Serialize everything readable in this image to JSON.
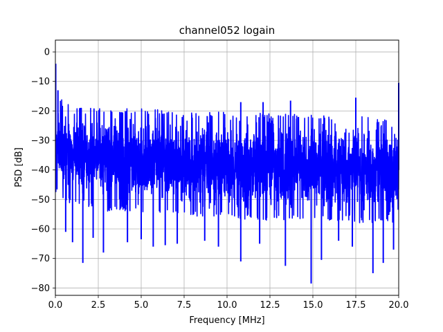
{
  "chart_data": {
    "type": "line",
    "title": "channel052 logain",
    "xlabel": "Frequency [MHz]",
    "ylabel": "PSD [dB]",
    "xlim": [
      0,
      20
    ],
    "ylim": [
      -82.5,
      4
    ],
    "xticks": [
      0,
      2.5,
      5,
      7.5,
      10,
      12.5,
      15,
      17.5,
      20
    ],
    "xtick_labels": [
      "0.0",
      "2.5",
      "5.0",
      "7.5",
      "10.0",
      "12.5",
      "15.0",
      "17.5",
      "20.0"
    ],
    "yticks": [
      0,
      -10,
      -20,
      -30,
      -40,
      -50,
      -60,
      -70,
      -80
    ],
    "ytick_labels": [
      "0",
      "−10",
      "−20",
      "−30",
      "−40",
      "−50",
      "−60",
      "−70",
      "−80"
    ],
    "grid": true,
    "series": [
      {
        "color": "#0000ff",
        "noise_floor": {
          "x": [
            0,
            0.5,
            1,
            2,
            3,
            4,
            5,
            6,
            7,
            8,
            9,
            10,
            11,
            12,
            13,
            14,
            15,
            16,
            17,
            18,
            19,
            20
          ],
          "y_max": [
            -14,
            -17,
            -18,
            -18,
            -18.5,
            -19,
            -19,
            -19.5,
            -19.5,
            -20,
            -20,
            -20.5,
            -20.5,
            -20.5,
            -21,
            -21,
            -21,
            -21.5,
            -21.5,
            -22,
            -22,
            -22
          ],
          "y_min": [
            -48,
            -50,
            -52,
            -53,
            -54,
            -54,
            -55,
            -55,
            -55,
            -56,
            -56,
            -56,
            -57,
            -57,
            -57,
            -57,
            -58,
            -58,
            -58,
            -58,
            -58,
            -58
          ]
        },
        "spikes_up": [
          {
            "x": 0.02,
            "y": -4
          },
          {
            "x": 0.15,
            "y": -13
          },
          {
            "x": 10.8,
            "y": -17
          },
          {
            "x": 12.1,
            "y": -17
          },
          {
            "x": 13.7,
            "y": -16.5
          },
          {
            "x": 17.5,
            "y": -15.5
          },
          {
            "x": 20.0,
            "y": -10.5
          }
        ],
        "spikes_down": [
          {
            "x": 0.6,
            "y": -61
          },
          {
            "x": 1.0,
            "y": -64.5
          },
          {
            "x": 1.6,
            "y": -71.5
          },
          {
            "x": 2.2,
            "y": -63
          },
          {
            "x": 2.8,
            "y": -68
          },
          {
            "x": 4.2,
            "y": -64.5
          },
          {
            "x": 5.0,
            "y": -63.5
          },
          {
            "x": 5.7,
            "y": -66
          },
          {
            "x": 6.4,
            "y": -65.5
          },
          {
            "x": 7.1,
            "y": -65
          },
          {
            "x": 8.7,
            "y": -64
          },
          {
            "x": 9.5,
            "y": -66
          },
          {
            "x": 10.8,
            "y": -71
          },
          {
            "x": 11.9,
            "y": -65
          },
          {
            "x": 13.4,
            "y": -72.5
          },
          {
            "x": 14.9,
            "y": -78.5
          },
          {
            "x": 15.5,
            "y": -70.5
          },
          {
            "x": 16.5,
            "y": -64
          },
          {
            "x": 17.3,
            "y": -66
          },
          {
            "x": 18.5,
            "y": -75
          },
          {
            "x": 19.1,
            "y": -71.5
          },
          {
            "x": 19.7,
            "y": -67
          }
        ]
      }
    ]
  }
}
